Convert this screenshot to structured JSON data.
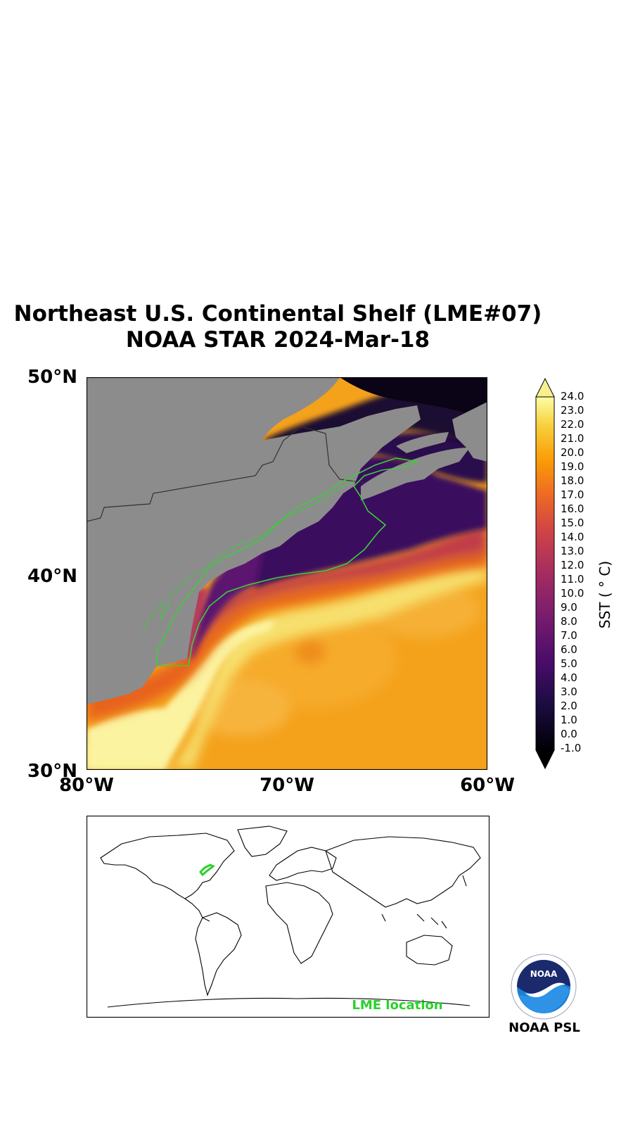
{
  "figure": {
    "title_line1": "Northeast U.S. Continental Shelf (LME#07)",
    "title_line2": "NOAA STAR 2024-Mar-18",
    "variable": "SST",
    "colorbar_label": "SST ( ° C)"
  },
  "map": {
    "lat_ticks": [
      "50°N",
      "40°N",
      "30°N"
    ],
    "lon_ticks": [
      "80°W",
      "70°W",
      "60°W"
    ],
    "extent": {
      "lon": [
        -80,
        -60
      ],
      "lat": [
        30,
        50
      ]
    },
    "land_color": "#8c8c8c",
    "lme_outline_color": "#3ccd3c"
  },
  "colorbar": {
    "ticks": [
      "24.0",
      "23.0",
      "22.0",
      "21.0",
      "20.0",
      "19.0",
      "18.0",
      "17.0",
      "16.0",
      "15.0",
      "14.0",
      "13.0",
      "12.0",
      "11.0",
      "10.0",
      "9.0",
      "8.0",
      "7.0",
      "6.0",
      "5.0",
      "4.0",
      "3.0",
      "2.0",
      "1.0",
      "0.0",
      "-1.0"
    ],
    "range": [
      -1.0,
      24.0
    ],
    "colormap": "inferno",
    "extend": "both"
  },
  "inset": {
    "label": "LME location",
    "label_color": "#2bd12b"
  },
  "logo": {
    "text": "NOAA",
    "caption": "NOAA PSL",
    "icon": "noaa-logo-icon"
  }
}
